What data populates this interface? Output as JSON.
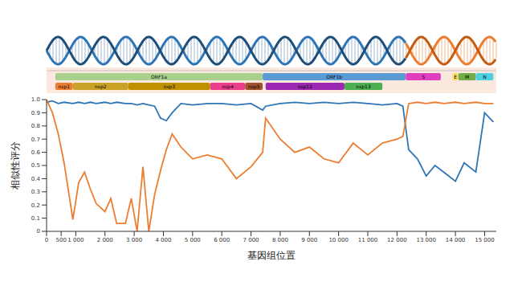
{
  "chart_data": {
    "type": "line",
    "x_label": "基因组位置",
    "y_label": "相似性评分",
    "x": [
      0,
      200,
      400,
      600,
      900,
      1100,
      1300,
      1500,
      1700,
      2000,
      2200,
      2400,
      2700,
      2900,
      3100,
      3300,
      3500,
      3700,
      3900,
      4100,
      4300,
      4600,
      5000,
      5500,
      6000,
      6500,
      7000,
      7400,
      7500,
      8000,
      8500,
      9000,
      9500,
      10000,
      10500,
      11000,
      11500,
      12000,
      12200,
      12400,
      12700,
      13000,
      13300,
      13600,
      14000,
      14300,
      14700,
      15000,
      15300
    ],
    "series": [
      {
        "color": "#2e75b6",
        "values": [
          0.98,
          0.99,
          0.97,
          0.98,
          0.97,
          0.98,
          0.97,
          0.98,
          0.97,
          0.98,
          0.97,
          0.98,
          0.97,
          0.97,
          0.96,
          0.97,
          0.96,
          0.95,
          0.86,
          0.84,
          0.9,
          0.97,
          0.96,
          0.97,
          0.97,
          0.96,
          0.97,
          0.92,
          0.95,
          0.97,
          0.98,
          0.97,
          0.98,
          0.97,
          0.98,
          0.97,
          0.96,
          0.97,
          0.95,
          0.62,
          0.55,
          0.42,
          0.5,
          0.45,
          0.38,
          0.52,
          0.45,
          0.9,
          0.83
        ]
      },
      {
        "color": "#ed7d31",
        "values": [
          1.0,
          0.9,
          0.74,
          0.52,
          0.09,
          0.37,
          0.45,
          0.32,
          0.21,
          0.15,
          0.25,
          0.06,
          0.06,
          0.25,
          0,
          0.49,
          0,
          0.28,
          0.46,
          0.62,
          0.74,
          0.64,
          0.55,
          0.58,
          0.55,
          0.4,
          0.49,
          0.6,
          0.86,
          0.7,
          0.6,
          0.64,
          0.55,
          0.52,
          0.67,
          0.58,
          0.67,
          0.7,
          0.72,
          0.97,
          0.98,
          0.97,
          0.98,
          0.97,
          0.98,
          0.97,
          0.98,
          0.97,
          0.97
        ]
      }
    ],
    "xlim": [
      0,
      15400
    ],
    "xticks": [
      0,
      {
        "value": 500,
        "label": "500"
      },
      {
        "value": 1000,
        "label": "1 000"
      },
      {
        "value": 2000,
        "label": "2 000"
      },
      {
        "value": 3000,
        "label": "3 000"
      },
      {
        "value": 4000,
        "label": "4 000"
      },
      {
        "value": 5000,
        "label": "5 000"
      },
      {
        "value": 6000,
        "label": "6 000"
      },
      {
        "value": 7000,
        "label": "7 000"
      },
      {
        "value": 8000,
        "label": "8 000"
      },
      {
        "value": 9000,
        "label": "9 000"
      },
      {
        "value": 10000,
        "label": "10 000"
      },
      {
        "value": 11000,
        "label": "11 000"
      },
      {
        "value": 12000,
        "label": "12 000"
      },
      {
        "value": 13000,
        "label": "13 000"
      },
      {
        "value": 14000,
        "label": "14 000"
      },
      {
        "value": 15000,
        "label": "15 000"
      }
    ],
    "ylim": [
      0,
      1
    ],
    "yticks": [
      0,
      0.1,
      0.2,
      0.3,
      0.4,
      0.5,
      0.6,
      0.7,
      0.8,
      0.9,
      {
        "value": 1,
        "label": "1.0"
      }
    ],
    "grid": false,
    "breakpoint": 12300
  },
  "annotation": {
    "genes": [
      {
        "name": "ORF1a",
        "start": 300,
        "end": 7400,
        "row": 0,
        "color": "#a9d18e"
      },
      {
        "name": "ORF1b",
        "start": 7400,
        "end": 12300,
        "row": 0,
        "color": "#5b9bd5"
      },
      {
        "name": "S",
        "start": 12300,
        "end": 13500,
        "row": 0,
        "color": "#e040c0"
      },
      {
        "name": "E",
        "start": 13900,
        "end": 14100,
        "row": 0,
        "color": "#ffd966"
      },
      {
        "name": "M",
        "start": 14100,
        "end": 14700,
        "row": 0,
        "color": "#70ad47"
      },
      {
        "name": "N",
        "start": 14700,
        "end": 15300,
        "row": 0,
        "color": "#4dd0e1"
      },
      {
        "name": "nsp1",
        "start": 300,
        "end": 900,
        "row": 1,
        "color": "#ed7d31"
      },
      {
        "name": "nsp2",
        "start": 900,
        "end": 2800,
        "row": 1,
        "color": "#c9a227"
      },
      {
        "name": "nsp3",
        "start": 2800,
        "end": 5600,
        "row": 1,
        "color": "#bf9000"
      },
      {
        "name": "nsp4",
        "start": 5600,
        "end": 6800,
        "row": 1,
        "color": "#e83e8c"
      },
      {
        "name": "nsp5",
        "start": 6800,
        "end": 7400,
        "row": 1,
        "color": "#a0522d"
      },
      {
        "name": "nsp12",
        "start": 7500,
        "end": 10200,
        "row": 1,
        "color": "#9c27b0"
      },
      {
        "name": "nsp13",
        "start": 10200,
        "end": 11500,
        "row": 1,
        "color": "#4caf50"
      }
    ]
  }
}
